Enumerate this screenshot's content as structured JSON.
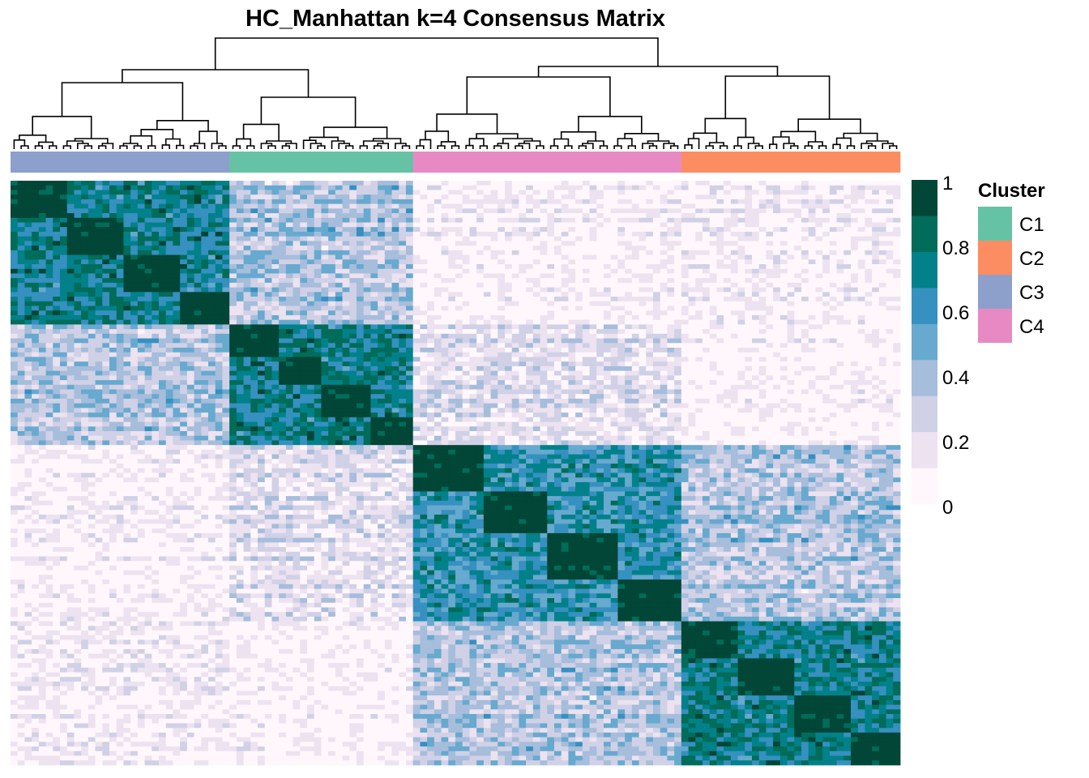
{
  "chart_data": {
    "type": "heatmap",
    "title": "HC_Manhattan k=4 Consensus Matrix",
    "colorbar": {
      "ticks": [
        "1",
        "0.8",
        "0.6",
        "0.4",
        "0.2",
        "0"
      ],
      "tick_values": [
        1,
        0.8,
        0.6,
        0.4,
        0.2,
        0
      ],
      "range": [
        0,
        1
      ],
      "colors": [
        "#fff7fb",
        "#ece2f0",
        "#d0d1e6",
        "#a6bddb",
        "#67a9cf",
        "#3690c0",
        "#02818a",
        "#016c59",
        "#014636"
      ]
    },
    "legend": {
      "title": "Cluster",
      "placement": "right",
      "items": [
        {
          "label": "C1",
          "color": "#66c2a5"
        },
        {
          "label": "C2",
          "color": "#fc8d62"
        },
        {
          "label": "C3",
          "color": "#8da0cb"
        },
        {
          "label": "C4",
          "color": "#e78ac3"
        }
      ]
    },
    "column_cluster_order": [
      "C3",
      "C1",
      "C4",
      "C2"
    ],
    "cluster_sizes": {
      "C3": 31,
      "C1": 26,
      "C4": 38,
      "C2": 31
    },
    "block_consensus": {
      "order": [
        "C3",
        "C1",
        "C4",
        "C2"
      ],
      "matrix": [
        [
          0.75,
          0.35,
          0.05,
          0.08
        ],
        [
          0.35,
          0.75,
          0.2,
          0.02
        ],
        [
          0.05,
          0.2,
          0.65,
          0.35
        ],
        [
          0.08,
          0.02,
          0.35,
          0.75
        ]
      ]
    },
    "dendrogram": {
      "position": "top",
      "split": "C3+C1 | C4+C2"
    }
  }
}
